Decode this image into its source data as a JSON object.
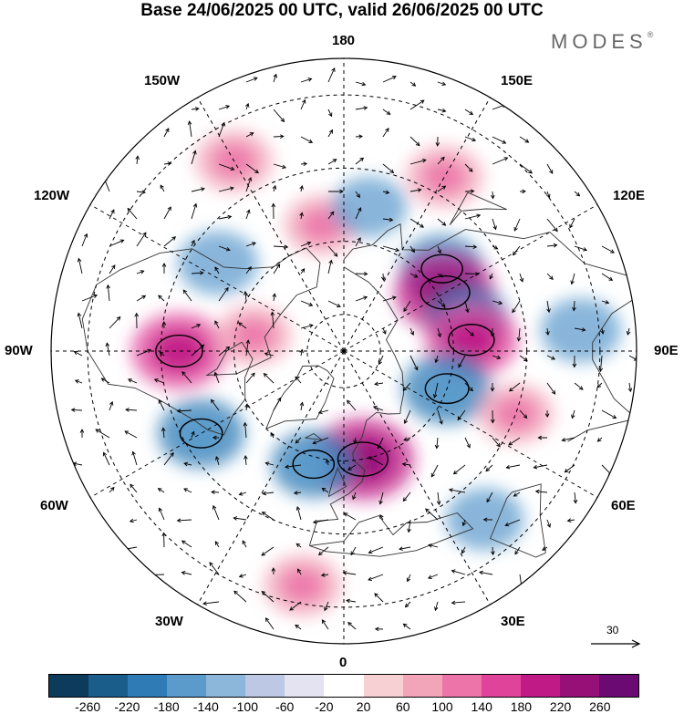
{
  "title": "Base 24/06/2025 00 UTC, valid 26/06/2025 00 UTC",
  "brand": "MODES",
  "brand_mark": "®",
  "longitude_labels": {
    "lon_180": "180",
    "lon_150w": "150W",
    "lon_150e": "150E",
    "lon_120w": "120W",
    "lon_120e": "120E",
    "lon_90w": "90W",
    "lon_90e": "90E",
    "lon_60w": "60W",
    "lon_60e": "60E",
    "lon_30w": "30W",
    "lon_30e": "30E",
    "lon_0": "0"
  },
  "vector_scale_label": "30",
  "colorbar": {
    "colors": [
      "#0d3b5c",
      "#1a5c8a",
      "#2f7bb5",
      "#5a9bcc",
      "#8db6db",
      "#bcc8e4",
      "#e3e3f2",
      "#ffffff",
      "#f6d0d3",
      "#f2a4b8",
      "#ec74a8",
      "#e0449a",
      "#c01a86",
      "#961078",
      "#6a0a72"
    ],
    "ticks": [
      "-260",
      "-220",
      "-180",
      "-140",
      "-100",
      "-60",
      "-20",
      "20",
      "60",
      "100",
      "140",
      "180",
      "220",
      "260"
    ]
  },
  "anomaly_blobs": [
    {
      "sign": "neg",
      "level": 0.55,
      "lon": 130,
      "lat": 55
    },
    {
      "sign": "pos",
      "level": 0.9,
      "lon": 120,
      "lat": 58
    },
    {
      "sign": "neg",
      "level": 0.5,
      "lon": 105,
      "lat": 55
    },
    {
      "sign": "pos",
      "level": 0.75,
      "lon": 95,
      "lat": 55
    },
    {
      "sign": "neg",
      "level": 0.65,
      "lon": 70,
      "lat": 60
    },
    {
      "sign": "pos",
      "level": 0.95,
      "lon": 10,
      "lat": 60
    },
    {
      "sign": "neg",
      "level": 0.55,
      "lon": -15,
      "lat": 58
    },
    {
      "sign": "pos",
      "level": 0.8,
      "lon": -90,
      "lat": 45
    },
    {
      "sign": "neg",
      "level": 0.6,
      "lon": -60,
      "lat": 45
    },
    {
      "sign": "neg",
      "level": 0.45,
      "lon": -125,
      "lat": 48
    },
    {
      "sign": "pos",
      "level": 0.4,
      "lon": -150,
      "lat": 30
    },
    {
      "sign": "pos",
      "level": 0.4,
      "lon": 150,
      "lat": 35
    },
    {
      "sign": "neg",
      "level": 0.45,
      "lon": 95,
      "lat": 25
    },
    {
      "sign": "neg",
      "level": 0.4,
      "lon": 40,
      "lat": 30
    },
    {
      "sign": "pos",
      "level": 0.4,
      "lon": -10,
      "lat": 25
    },
    {
      "sign": "pos",
      "level": 0.35,
      "lon": -170,
      "lat": 55
    },
    {
      "sign": "neg",
      "level": 0.35,
      "lon": 170,
      "lat": 50
    },
    {
      "sign": "pos",
      "level": 0.35,
      "lon": 70,
      "lat": 40
    },
    {
      "sign": "pos",
      "level": 0.35,
      "lon": -100,
      "lat": 65
    }
  ]
}
